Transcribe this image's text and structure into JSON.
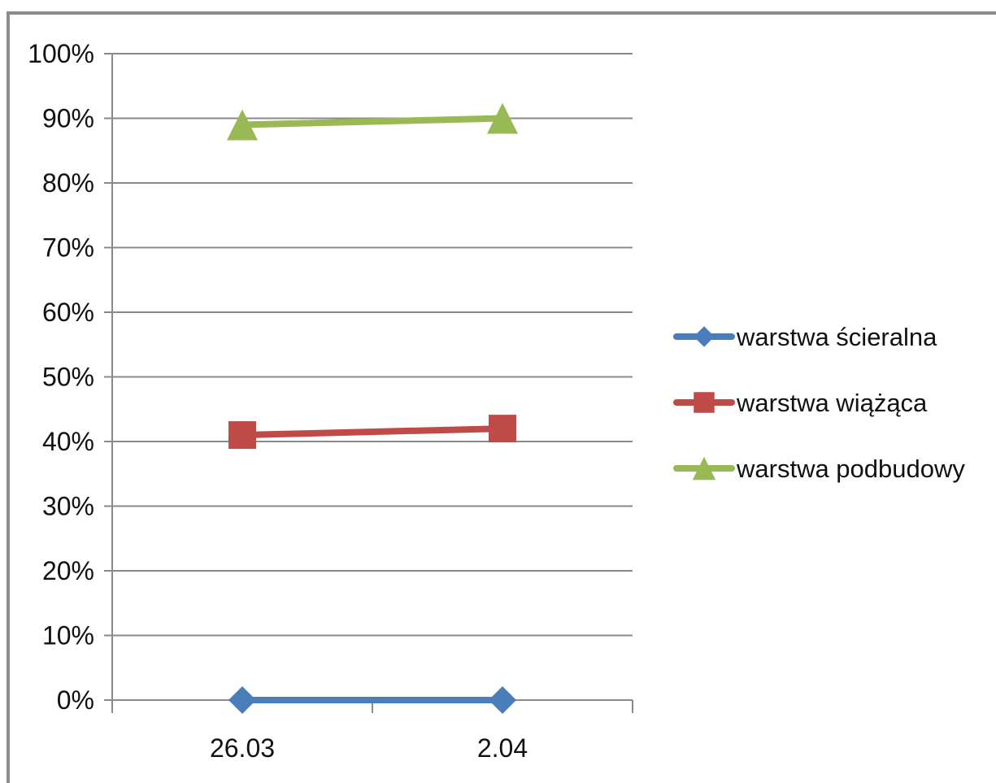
{
  "chart_data": {
    "type": "line",
    "categories": [
      "26.03",
      "2.04"
    ],
    "y_tick_labels": [
      "0%",
      "10%",
      "20%",
      "30%",
      "40%",
      "50%",
      "60%",
      "70%",
      "80%",
      "90%",
      "100%"
    ],
    "ylim": [
      0,
      100
    ],
    "y_format": "percent",
    "grid": true,
    "legend_position": "right",
    "series": [
      {
        "name": "warstwa ścieralna",
        "values": [
          0,
          0
        ],
        "color": "#4a7ebb",
        "marker": "diamond"
      },
      {
        "name": "warstwa wiążąca",
        "values": [
          41,
          42
        ],
        "color": "#be4b48",
        "marker": "square"
      },
      {
        "name": "warstwa podbudowy",
        "values": [
          89,
          90
        ],
        "color": "#98b954",
        "marker": "triangle"
      }
    ]
  }
}
